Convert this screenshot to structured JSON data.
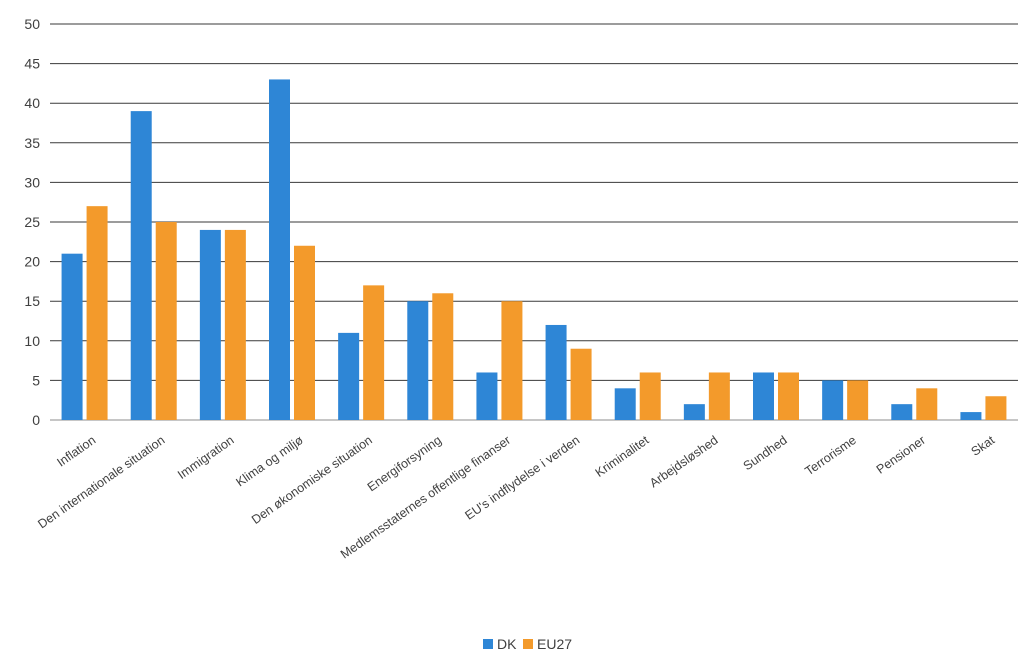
{
  "chart_data": {
    "type": "bar",
    "title": "",
    "xlabel": "",
    "ylabel": "",
    "ylim": [
      0,
      50
    ],
    "yticks": [
      0,
      5,
      10,
      15,
      20,
      25,
      30,
      35,
      40,
      45,
      50
    ],
    "grid": true,
    "legend_position": "bottom",
    "categories": [
      "Inflation",
      "Den internationale situation",
      "Immigration",
      "Klima og miljø",
      "Den økonomiske situation",
      "Energiforsyning",
      "Medlemsstaternes offentlige finanser",
      "EU's indflydelse i verden",
      "Kriminalitet",
      "Arbejdsløshed",
      "Sundhed",
      "Terrorisme",
      "Pensioner",
      "Skat"
    ],
    "series": [
      {
        "name": "DK",
        "color": "#2e86d6",
        "values": [
          21,
          39,
          24,
          43,
          11,
          15,
          6,
          12,
          4,
          2,
          6,
          5,
          2,
          1
        ]
      },
      {
        "name": "EU27",
        "color": "#f39a2b",
        "values": [
          27,
          25,
          24,
          22,
          17,
          16,
          15,
          9,
          6,
          6,
          6,
          5,
          4,
          3
        ]
      }
    ]
  }
}
